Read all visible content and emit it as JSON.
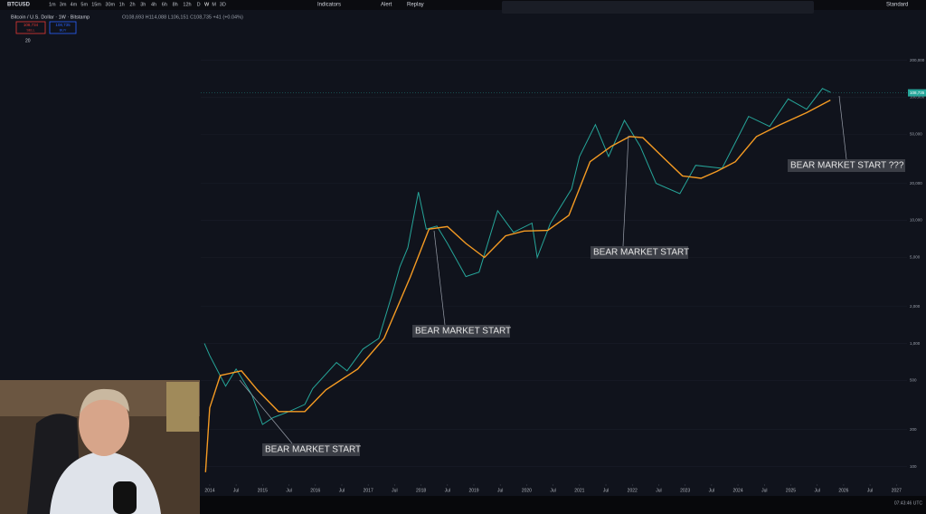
{
  "toolbar": {
    "symbol": "BTCUSD",
    "timeframes": [
      "1m",
      "3m",
      "4m",
      "5m",
      "15m",
      "30m",
      "1h",
      "2h",
      "3h",
      "4h",
      "6h",
      "8h",
      "12h",
      "D",
      "W",
      "M",
      "3D"
    ],
    "indicators": "Indicators",
    "alert": "Alert",
    "replay": "Replay",
    "layout": "Standard"
  },
  "legend": {
    "title": "Bitcoin / U.S. Dollar · 1W · Bitstamp",
    "ohlc": "O108,693 H114,088 L106,151 C108,735 +41 (+0.04%)",
    "sell_price": "108,734",
    "sell": "SELL",
    "buy_price": "108,735",
    "buy": "BUY",
    "indicator": "20"
  },
  "chart_data": {
    "type": "line",
    "log_scale": true,
    "xlim": [
      2013.83,
      2027.2
    ],
    "ylim": [
      72,
      504000
    ],
    "xticks": [
      2014,
      {
        "value": 2014.5,
        "label": "Jul"
      },
      2015,
      {
        "value": 2015.5,
        "label": "Jul"
      },
      2016,
      {
        "value": 2016.5,
        "label": "Jul"
      },
      2017,
      {
        "value": 2017.5,
        "label": "Jul"
      },
      2018,
      {
        "value": 2018.5,
        "label": "Jul"
      },
      2019,
      {
        "value": 2019.5,
        "label": "Jul"
      },
      2020,
      {
        "value": 2020.5,
        "label": "Jul"
      },
      2021,
      {
        "value": 2021.5,
        "label": "Jul"
      },
      2022,
      {
        "value": 2022.5,
        "label": "Jul"
      },
      2023,
      {
        "value": 2023.5,
        "label": "Jul"
      },
      2024,
      {
        "value": 2024.5,
        "label": "Jul"
      },
      2025,
      {
        "value": 2025.5,
        "label": "Jul"
      },
      2026,
      {
        "value": 2026.5,
        "label": "Jul"
      },
      2027
    ],
    "yticks": [
      100,
      200,
      500,
      {
        "value": 1000,
        "label": "1,000"
      },
      {
        "value": 2000,
        "label": "2,000"
      },
      {
        "value": 5000,
        "label": "5,000"
      },
      {
        "value": 10000,
        "label": "10,000"
      },
      {
        "value": 20000,
        "label": "20,000"
      },
      {
        "value": 50000,
        "label": "50,000"
      },
      {
        "value": 100000,
        "label": "100,000"
      },
      {
        "value": 200000,
        "label": "200,000"
      }
    ],
    "series": [
      {
        "color": "#26a69a",
        "x": [
          2013.9,
          2014.0,
          2014.3,
          2014.5,
          2014.8,
          2015.0,
          2015.2,
          2015.5,
          2015.8,
          2015.95,
          2016.4,
          2016.6,
          2016.9,
          2017.2,
          2017.45,
          2017.6,
          2017.75,
          2017.95,
          2018.1,
          2018.3,
          2018.5,
          2018.85,
          2019.1,
          2019.45,
          2019.75,
          2020.1,
          2020.2,
          2020.45,
          2020.85,
          2021.0,
          2021.3,
          2021.55,
          2021.85,
          2022.15,
          2022.45,
          2022.9,
          2023.2,
          2023.7,
          2023.95,
          2024.2,
          2024.6,
          2024.95,
          2025.3,
          2025.6,
          2025.75
        ],
        "values": [
          1000,
          800,
          450,
          620,
          380,
          220,
          250,
          280,
          320,
          430,
          700,
          600,
          900,
          1100,
          2500,
          4200,
          6000,
          17000,
          8500,
          9000,
          6500,
          3500,
          3800,
          12000,
          8000,
          9500,
          5000,
          9500,
          18000,
          33000,
          60000,
          33000,
          65000,
          40000,
          20000,
          16500,
          28000,
          26500,
          43000,
          70000,
          58000,
          97000,
          80000,
          118000,
          110000
        ]
      },
      {
        "color": "#f59b23",
        "x": [
          2013.92,
          2014.0,
          2014.2,
          2014.6,
          2014.9,
          2015.3,
          2015.8,
          2016.2,
          2016.8,
          2017.3,
          2017.8,
          2018.15,
          2018.5,
          2018.85,
          2019.2,
          2019.6,
          2019.95,
          2020.4,
          2020.8,
          2021.2,
          2021.6,
          2021.95,
          2022.2,
          2022.6,
          2022.95,
          2023.3,
          2023.6,
          2023.95,
          2024.35,
          2024.8,
          2025.3,
          2025.75
        ],
        "values": [
          90,
          300,
          550,
          600,
          420,
          280,
          280,
          420,
          620,
          1100,
          3500,
          8500,
          8900,
          6500,
          5000,
          7500,
          8200,
          8300,
          11000,
          30000,
          40000,
          48000,
          47000,
          32000,
          23000,
          22000,
          25000,
          30000,
          48000,
          60000,
          75000,
          95000
        ]
      }
    ],
    "last_price": {
      "value": 108735,
      "label": "108,735"
    },
    "annotations": [
      "BEAR MARKET START",
      "BEAR MARKET START",
      "BEAR MARKET START",
      "BEAR MARKET START ???"
    ]
  },
  "status": {
    "time": "07:43:46 UTC"
  }
}
